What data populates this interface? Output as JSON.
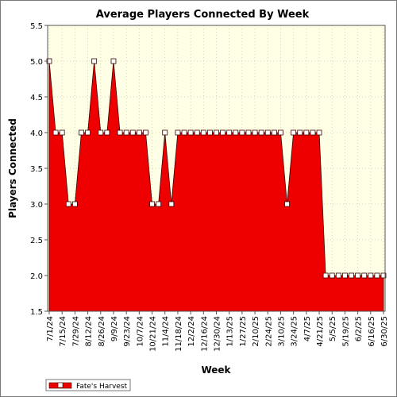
{
  "chart_data": {
    "type": "area",
    "title": "Average Players Connected By Week",
    "xlabel": "Week",
    "ylabel": "Players Connected",
    "ylim": [
      1.5,
      5.5
    ],
    "yticks": [
      "1.5",
      "2.0",
      "2.5",
      "3.0",
      "3.5",
      "4.0",
      "4.5",
      "5.0",
      "5.5"
    ],
    "grid": true,
    "legend_position": "bottom-left",
    "colors": {
      "fill": "#ee0000",
      "plot_bg": "#ffffe6",
      "marker": "#ffffff"
    },
    "x_tick_labels": [
      "7/1/24",
      "7/15/24",
      "7/29/24",
      "8/12/24",
      "8/26/24",
      "9/9/24",
      "9/23/24",
      "10/7/24",
      "10/21/24",
      "11/4/24",
      "11/18/24",
      "12/2/24",
      "12/16/24",
      "12/30/24",
      "1/13/25",
      "1/27/25",
      "2/10/25",
      "2/24/25",
      "3/10/25",
      "3/24/25",
      "4/7/25",
      "4/21/25",
      "5/5/25",
      "5/19/25",
      "6/2/25",
      "6/16/25",
      "6/30/25"
    ],
    "x": [
      "7/1/24",
      "7/8/24",
      "7/15/24",
      "7/22/24",
      "7/29/24",
      "8/5/24",
      "8/12/24",
      "8/19/24",
      "8/26/24",
      "9/2/24",
      "9/9/24",
      "9/16/24",
      "9/23/24",
      "9/30/24",
      "10/7/24",
      "10/14/24",
      "10/21/24",
      "10/28/24",
      "11/4/24",
      "11/11/24",
      "11/18/24",
      "11/25/24",
      "12/2/24",
      "12/9/24",
      "12/16/24",
      "12/23/24",
      "12/30/24",
      "1/6/25",
      "1/13/25",
      "1/20/25",
      "1/27/25",
      "2/3/25",
      "2/10/25",
      "2/17/25",
      "2/24/25",
      "3/3/25",
      "3/10/25",
      "3/17/25",
      "3/24/25",
      "3/31/25",
      "4/7/25",
      "4/14/25",
      "4/21/25",
      "4/28/25",
      "5/5/25",
      "5/12/25",
      "5/19/25",
      "5/26/25",
      "6/2/25",
      "6/9/25",
      "6/16/25",
      "6/23/25",
      "6/30/25"
    ],
    "series": [
      {
        "name": "Fate's Harvest",
        "values": [
          5,
          4,
          4,
          3,
          3,
          4,
          4,
          5,
          4,
          4,
          5,
          4,
          4,
          4,
          4,
          4,
          3,
          3,
          4,
          3,
          4,
          4,
          4,
          4,
          4,
          4,
          4,
          4,
          4,
          4,
          4,
          4,
          4,
          4,
          4,
          4,
          4,
          3,
          4,
          4,
          4,
          4,
          4,
          2,
          2,
          2,
          2,
          2,
          2,
          2,
          2,
          2,
          2
        ]
      }
    ]
  }
}
